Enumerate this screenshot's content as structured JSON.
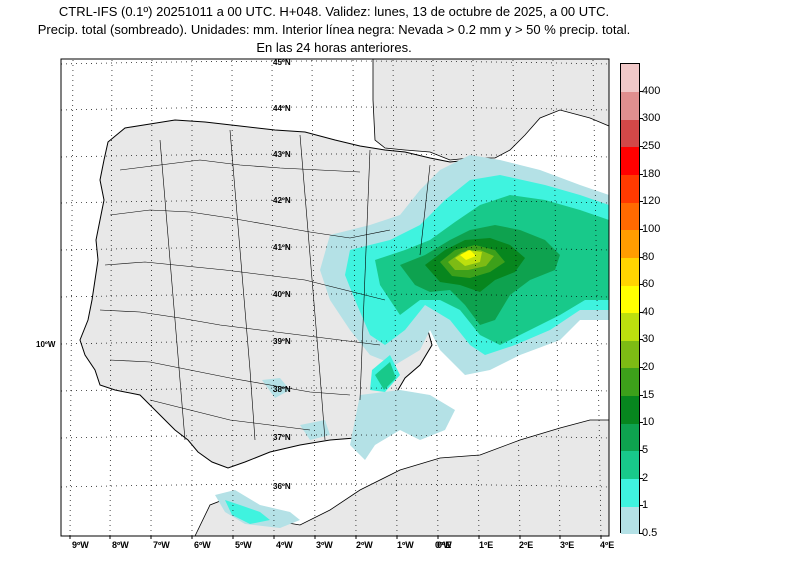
{
  "title": {
    "line1": "CTRL-IFS (0.1º) 20251011 a 00 UTC. H+048. Validez: lunes, 13 de octubre de 2025, a 00 UTC.",
    "line2": "Precip. total (sombreado). Unidades: mm. Interior línea negra: Nevada > 0.2 mm y > 50 % precip. total.",
    "line3": "En las 24 horas anteriores."
  },
  "map": {
    "region": "Península Ibérica y Baleares",
    "background_land": "#e8e8e8",
    "background_sea": "#ffffff",
    "graticule": "dotted"
  },
  "lat_labels": [
    "45ºN",
    "44ºN",
    "43ºN",
    "42ºN",
    "41ºN",
    "40ºN",
    "39ºN",
    "38ºN",
    "37ºN",
    "36ºN"
  ],
  "lon_left_label": "10ºW",
  "lon_labels": [
    "9ºW",
    "8ºW",
    "7ºW",
    "6ºW",
    "5ºW",
    "4ºW",
    "3ºW",
    "2ºW",
    "1ºW",
    "0ºW",
    "0ºE",
    "1ºE",
    "2ºE",
    "3ºE",
    "4ºE"
  ],
  "colorbar": {
    "levels": [
      "0.5",
      "1",
      "2",
      "5",
      "10",
      "15",
      "20",
      "30",
      "40",
      "60",
      "80",
      "100",
      "120",
      "180",
      "250",
      "300",
      "400"
    ],
    "colors": [
      "#b4e1e6",
      "#3ff3df",
      "#18c98a",
      "#0ea24f",
      "#07861e",
      "#3da01a",
      "#7dbb14",
      "#bde00e",
      "#ffff00",
      "#ffd400",
      "#ff9c00",
      "#ff6a00",
      "#ff3a00",
      "#ff0000",
      "#d24848",
      "#e08f8f",
      "#f0c8c8"
    ]
  }
}
